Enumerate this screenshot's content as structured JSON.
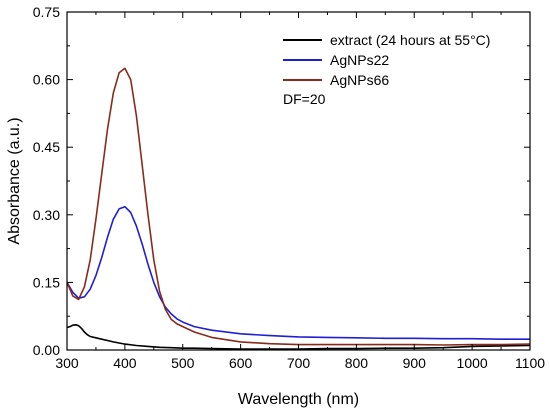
{
  "chart_data": {
    "type": "line",
    "xlabel": "Wavelength (nm)",
    "ylabel": "Absorbance (a.u.)",
    "xlim": [
      300,
      1100
    ],
    "ylim": [
      0,
      0.75
    ],
    "xticks": [
      300,
      400,
      500,
      600,
      700,
      800,
      900,
      1000,
      1100
    ],
    "xtick_labels": [
      "300",
      "400",
      "500",
      "600",
      "700",
      "800",
      "900",
      "1000",
      "1100"
    ],
    "yticks": [
      0,
      0.15,
      0.3,
      0.45,
      0.6,
      0.75
    ],
    "ytick_labels": [
      "0.00",
      "0.15",
      "0.30",
      "0.45",
      "0.60",
      "0.75"
    ],
    "grid": false,
    "legend_position": "top-right",
    "annotation": "DF=20",
    "series": [
      {
        "name": "extract (24 hours at 55°C)",
        "color": "#000000",
        "x": [
          300,
          305,
          310,
          315,
          320,
          325,
          330,
          335,
          340,
          350,
          360,
          370,
          380,
          400,
          420,
          440,
          460,
          480,
          500,
          520,
          550,
          600,
          650,
          700,
          750,
          800,
          850,
          900,
          950,
          1000,
          1050,
          1100
        ],
        "y": [
          0.05,
          0.052,
          0.055,
          0.056,
          0.054,
          0.048,
          0.04,
          0.034,
          0.03,
          0.027,
          0.024,
          0.021,
          0.018,
          0.013,
          0.01,
          0.008,
          0.006,
          0.005,
          0.004,
          0.004,
          0.003,
          0.002,
          0.002,
          0.002,
          0.003,
          0.003,
          0.004,
          0.004,
          0.005,
          0.008,
          0.009,
          0.01
        ]
      },
      {
        "name": "AgNPs22",
        "color": "#1f1fd6",
        "x": [
          300,
          310,
          320,
          330,
          340,
          350,
          360,
          370,
          380,
          390,
          400,
          410,
          420,
          430,
          440,
          450,
          460,
          470,
          480,
          490,
          500,
          520,
          550,
          600,
          650,
          700,
          750,
          800,
          850,
          900,
          950,
          1000,
          1050,
          1100
        ],
        "y": [
          0.15,
          0.128,
          0.115,
          0.118,
          0.135,
          0.165,
          0.205,
          0.25,
          0.29,
          0.313,
          0.318,
          0.305,
          0.275,
          0.235,
          0.19,
          0.15,
          0.118,
          0.095,
          0.08,
          0.069,
          0.062,
          0.052,
          0.044,
          0.036,
          0.032,
          0.029,
          0.028,
          0.027,
          0.026,
          0.026,
          0.025,
          0.025,
          0.024,
          0.024
        ]
      },
      {
        "name": "AgNPs66",
        "color": "#8b2a1a",
        "x": [
          300,
          310,
          320,
          330,
          340,
          350,
          360,
          370,
          380,
          390,
          400,
          410,
          420,
          430,
          440,
          450,
          460,
          470,
          480,
          490,
          500,
          520,
          550,
          600,
          650,
          700,
          750,
          800,
          850,
          900,
          950,
          1000,
          1050,
          1100
        ],
        "y": [
          0.15,
          0.12,
          0.112,
          0.14,
          0.2,
          0.29,
          0.39,
          0.49,
          0.57,
          0.615,
          0.625,
          0.6,
          0.52,
          0.41,
          0.3,
          0.2,
          0.13,
          0.09,
          0.068,
          0.058,
          0.052,
          0.04,
          0.028,
          0.018,
          0.014,
          0.012,
          0.012,
          0.012,
          0.012,
          0.012,
          0.011,
          0.012,
          0.012,
          0.013
        ]
      }
    ]
  }
}
